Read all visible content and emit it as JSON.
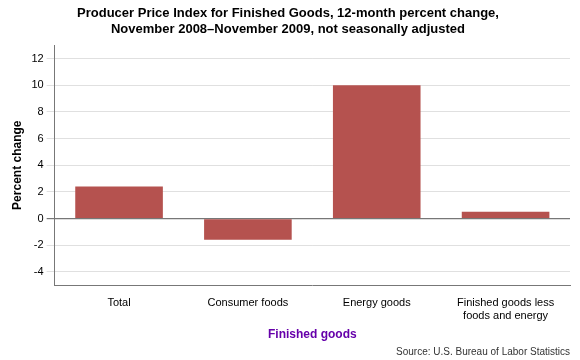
{
  "chart_data": {
    "type": "bar",
    "title": "Producer Price Index for Finished Goods, 12-month percent change,\nNovember 2008–November 2009, not seasonally adjusted",
    "categories": [
      "Total",
      "Consumer foods",
      "Energy goods",
      "Finished goods less\nfoods and energy"
    ],
    "values": [
      2.4,
      -1.6,
      10.0,
      0.5
    ],
    "color": "#b5524f",
    "xlabel": "Finished goods",
    "ylabel": "Percent change",
    "annotations": [
      "Source: U.S. Bureau of Labor Statistics"
    ],
    "ylim": [
      -5,
      13
    ],
    "yticks": [
      -4,
      -2,
      0,
      2,
      4,
      6,
      8,
      10,
      12
    ],
    "grid": true
  }
}
